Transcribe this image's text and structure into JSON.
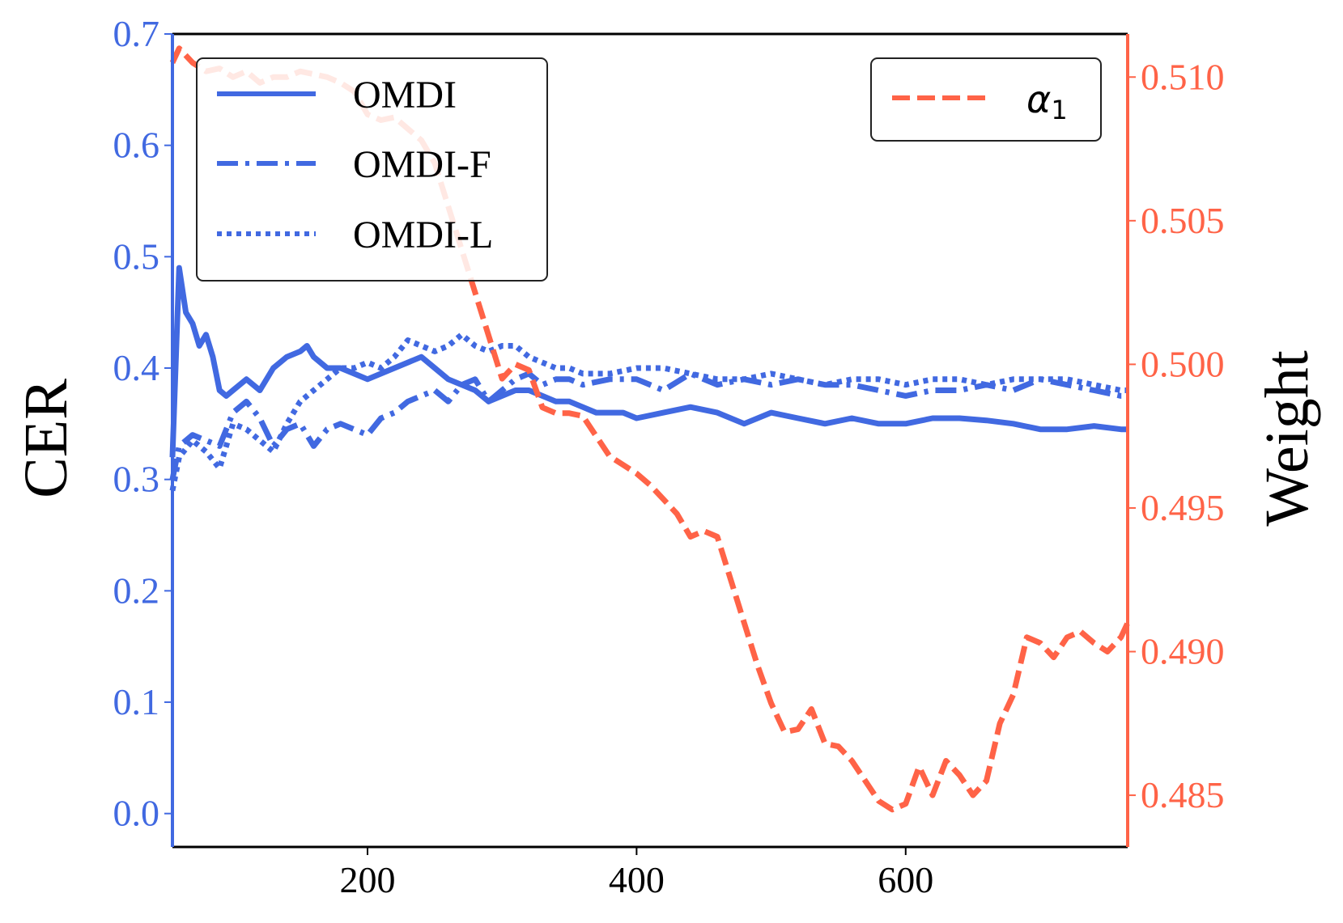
{
  "chart_data": {
    "type": "line",
    "title": "",
    "xlabel": "",
    "ylabel_left": "CER",
    "ylabel_right": "Weight",
    "xlim": [
      55,
      765
    ],
    "ylim_left": [
      -0.03,
      0.7
    ],
    "ylim_right": [
      0.4832,
      0.5115
    ],
    "x_ticks": [
      200,
      400,
      600
    ],
    "y_left_ticks": [
      "0.0",
      "0.1",
      "0.2",
      "0.3",
      "0.4",
      "0.5",
      "0.6",
      "0.7"
    ],
    "y_right_ticks": [
      "0.485",
      "0.490",
      "0.495",
      "0.500",
      "0.505",
      "0.510"
    ],
    "grid": false,
    "colors": {
      "cer": "#4169E1",
      "weight": "#FF6347"
    },
    "legend_left": {
      "position": "upper-left",
      "entries": [
        "OMDI",
        "OMDI-F",
        "OMDI-L"
      ]
    },
    "legend_right": {
      "position": "upper-right",
      "base": "α",
      "subscript": "1"
    },
    "series": [
      {
        "name": "OMDI",
        "axis": "left",
        "style": "solid",
        "x": [
          55,
          60,
          65,
          70,
          75,
          80,
          85,
          90,
          95,
          100,
          110,
          120,
          130,
          140,
          150,
          155,
          160,
          170,
          180,
          190,
          200,
          210,
          220,
          230,
          240,
          250,
          260,
          270,
          280,
          290,
          300,
          310,
          320,
          330,
          340,
          350,
          360,
          370,
          380,
          390,
          400,
          420,
          440,
          460,
          480,
          500,
          520,
          540,
          560,
          580,
          600,
          620,
          640,
          660,
          680,
          700,
          720,
          740,
          760,
          765
        ],
        "y": [
          0.32,
          0.49,
          0.45,
          0.44,
          0.42,
          0.43,
          0.41,
          0.38,
          0.375,
          0.38,
          0.39,
          0.38,
          0.4,
          0.41,
          0.415,
          0.42,
          0.41,
          0.4,
          0.4,
          0.395,
          0.39,
          0.395,
          0.4,
          0.405,
          0.41,
          0.4,
          0.39,
          0.385,
          0.38,
          0.37,
          0.375,
          0.38,
          0.38,
          0.375,
          0.37,
          0.37,
          0.365,
          0.36,
          0.36,
          0.36,
          0.355,
          0.36,
          0.365,
          0.36,
          0.35,
          0.36,
          0.355,
          0.35,
          0.355,
          0.35,
          0.35,
          0.355,
          0.355,
          0.353,
          0.35,
          0.345,
          0.345,
          0.348,
          0.345,
          0.345
        ]
      },
      {
        "name": "OMDI-F",
        "axis": "left",
        "style": "dashdot",
        "x": [
          55,
          60,
          70,
          80,
          90,
          100,
          110,
          120,
          130,
          140,
          150,
          160,
          170,
          180,
          190,
          200,
          210,
          220,
          230,
          240,
          250,
          260,
          270,
          280,
          290,
          300,
          310,
          320,
          330,
          340,
          350,
          360,
          380,
          400,
          420,
          440,
          460,
          480,
          500,
          520,
          540,
          560,
          580,
          600,
          620,
          640,
          660,
          680,
          700,
          720,
          740,
          760,
          765
        ],
        "y": [
          0.3,
          0.33,
          0.34,
          0.335,
          0.33,
          0.36,
          0.37,
          0.355,
          0.33,
          0.345,
          0.35,
          0.33,
          0.345,
          0.35,
          0.345,
          0.34,
          0.355,
          0.36,
          0.37,
          0.375,
          0.38,
          0.37,
          0.385,
          0.39,
          0.37,
          0.38,
          0.39,
          0.395,
          0.385,
          0.39,
          0.39,
          0.385,
          0.39,
          0.39,
          0.38,
          0.395,
          0.385,
          0.39,
          0.385,
          0.39,
          0.385,
          0.385,
          0.38,
          0.375,
          0.38,
          0.38,
          0.385,
          0.38,
          0.39,
          0.385,
          0.38,
          0.375,
          0.375
        ]
      },
      {
        "name": "OMDI-L",
        "axis": "left",
        "style": "dotted",
        "x": [
          55,
          60,
          70,
          80,
          90,
          100,
          110,
          120,
          130,
          140,
          150,
          160,
          170,
          180,
          190,
          200,
          210,
          220,
          230,
          240,
          250,
          260,
          270,
          280,
          290,
          300,
          310,
          320,
          330,
          340,
          350,
          360,
          380,
          400,
          420,
          440,
          460,
          480,
          500,
          520,
          540,
          560,
          580,
          600,
          620,
          640,
          660,
          680,
          700,
          720,
          740,
          760,
          765
        ],
        "y": [
          0.29,
          0.32,
          0.335,
          0.325,
          0.31,
          0.35,
          0.345,
          0.335,
          0.325,
          0.35,
          0.37,
          0.38,
          0.39,
          0.4,
          0.4,
          0.405,
          0.4,
          0.41,
          0.425,
          0.42,
          0.415,
          0.42,
          0.43,
          0.42,
          0.415,
          0.42,
          0.42,
          0.41,
          0.405,
          0.4,
          0.4,
          0.395,
          0.395,
          0.4,
          0.4,
          0.395,
          0.39,
          0.39,
          0.395,
          0.39,
          0.385,
          0.39,
          0.39,
          0.385,
          0.39,
          0.39,
          0.385,
          0.39,
          0.39,
          0.39,
          0.385,
          0.38,
          0.38
        ]
      },
      {
        "name": "α1",
        "axis": "right",
        "style": "dashed",
        "x": [
          55,
          60,
          70,
          80,
          90,
          100,
          110,
          120,
          130,
          140,
          150,
          160,
          170,
          180,
          190,
          200,
          210,
          220,
          230,
          240,
          250,
          260,
          270,
          280,
          290,
          300,
          310,
          320,
          330,
          340,
          350,
          360,
          370,
          380,
          390,
          400,
          410,
          420,
          430,
          440,
          450,
          460,
          470,
          480,
          490,
          500,
          510,
          520,
          530,
          540,
          550,
          560,
          570,
          580,
          590,
          600,
          610,
          620,
          630,
          640,
          650,
          660,
          670,
          680,
          690,
          700,
          710,
          720,
          730,
          740,
          750,
          760,
          765
        ],
        "y": [
          0.5105,
          0.511,
          0.5105,
          0.5102,
          0.5103,
          0.51,
          0.5102,
          0.5098,
          0.51,
          0.51,
          0.5102,
          0.5101,
          0.51,
          0.5098,
          0.5095,
          0.5087,
          0.5085,
          0.5086,
          0.5082,
          0.5078,
          0.507,
          0.5055,
          0.504,
          0.5025,
          0.501,
          0.4995,
          0.5,
          0.4998,
          0.4985,
          0.4983,
          0.4983,
          0.4982,
          0.4975,
          0.4968,
          0.4965,
          0.4962,
          0.4958,
          0.4953,
          0.4948,
          0.494,
          0.4942,
          0.494,
          0.4925,
          0.491,
          0.4895,
          0.4882,
          0.4872,
          0.4873,
          0.488,
          0.4868,
          0.4867,
          0.4862,
          0.4855,
          0.4848,
          0.4845,
          0.4847,
          0.486,
          0.485,
          0.4862,
          0.4857,
          0.485,
          0.4855,
          0.4875,
          0.4885,
          0.4905,
          0.4903,
          0.4898,
          0.4905,
          0.4907,
          0.4903,
          0.49,
          0.4905,
          0.491
        ]
      }
    ]
  }
}
